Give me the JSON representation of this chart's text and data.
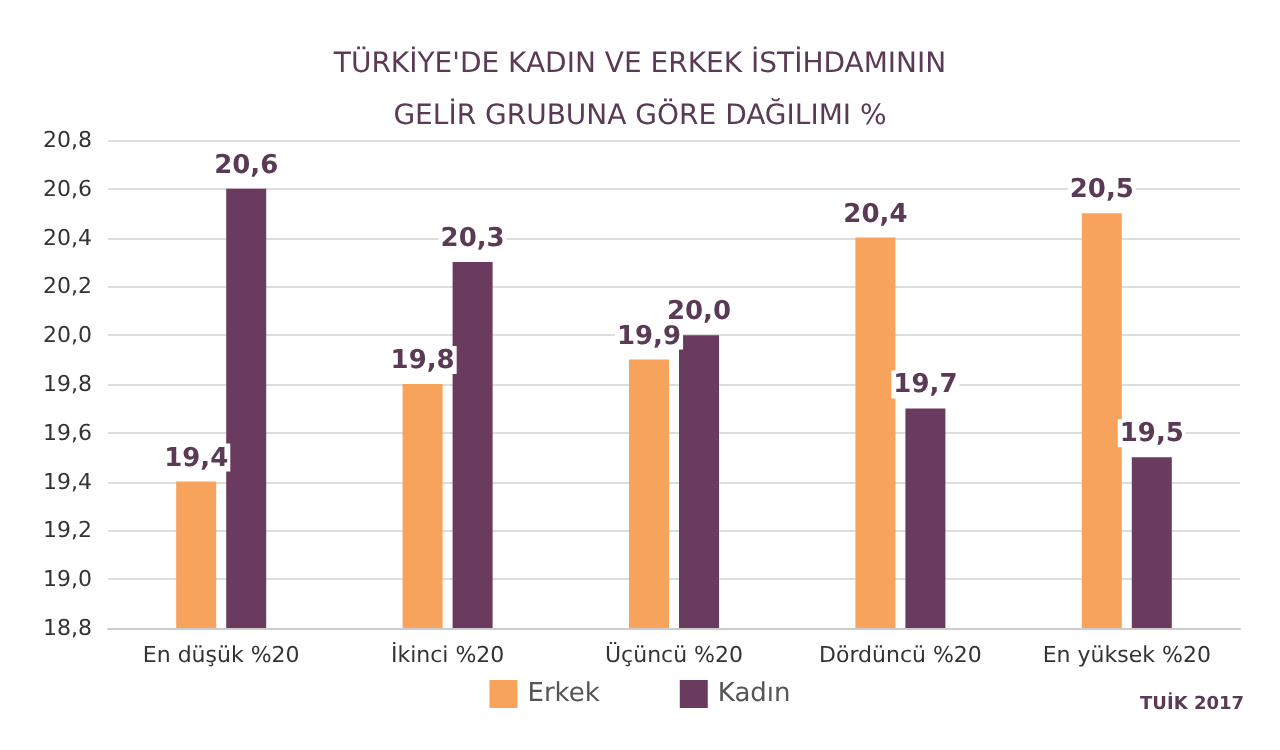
{
  "chart_data": {
    "type": "bar",
    "title": "TÜRKİYE'DE KADIN VE ERKEK İSTİHDAMININ\nGELİR GRUBUNA GÖRE DAĞILIMI %",
    "categories": [
      "En düşük %20",
      "İkinci %20",
      "Üçüncü %20",
      "Dördüncü %20",
      "En yüksek %20"
    ],
    "series": [
      {
        "name": "Erkek",
        "color": "#f7a35c",
        "values": [
          19.4,
          19.8,
          19.9,
          20.4,
          20.5
        ],
        "value_labels": [
          "19,4",
          "19,8",
          "19,9",
          "20,4",
          "20,5"
        ]
      },
      {
        "name": "Kadın",
        "color": "#6b3a5f",
        "values": [
          20.6,
          20.3,
          20.0,
          19.7,
          19.5
        ],
        "value_labels": [
          "20,6",
          "20,3",
          "20,0",
          "19,7",
          "19,5"
        ]
      }
    ],
    "ylim": [
      18.8,
      20.8
    ],
    "yticks": [
      {
        "value": 18.8,
        "label": "18,8"
      },
      {
        "value": 19.0,
        "label": "19,0"
      },
      {
        "value": 19.2,
        "label": "19,2"
      },
      {
        "value": 19.4,
        "label": "19,4"
      },
      {
        "value": 19.6,
        "label": "19,6"
      },
      {
        "value": 19.8,
        "label": "19,8"
      },
      {
        "value": 20.0,
        "label": "20,0"
      },
      {
        "value": 20.2,
        "label": "20,2"
      },
      {
        "value": 20.4,
        "label": "20,4"
      },
      {
        "value": 20.6,
        "label": "20,6"
      },
      {
        "value": 20.8,
        "label": "20,8"
      }
    ],
    "grid": "y",
    "legend": "bottom",
    "annotations": [
      "TUİK 2017"
    ]
  }
}
